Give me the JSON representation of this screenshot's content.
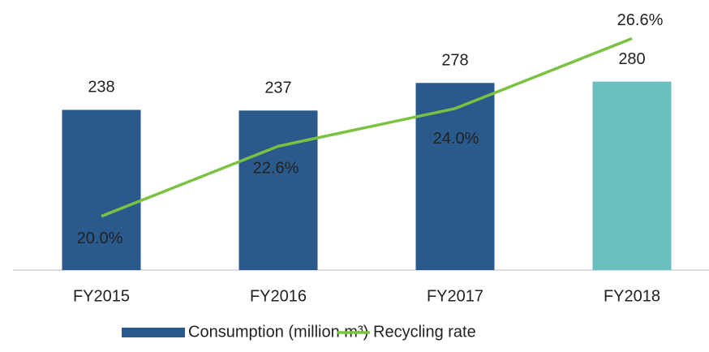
{
  "chart_data": {
    "type": "bar",
    "categories": [
      "FY2015",
      "FY2016",
      "FY2017",
      "FY2018"
    ],
    "series": [
      {
        "name": "Consumption (million m³)",
        "type": "bar",
        "color": "#2a5a8b",
        "colors": [
          "#2a5a8b",
          "#2a5a8b",
          "#2a5a8b",
          "#6bbfbf"
        ],
        "values": [
          238,
          237,
          278,
          280
        ]
      },
      {
        "name": "Recycling rate",
        "type": "line",
        "axis": "y2",
        "color": "#7cc242",
        "values": [
          20.0,
          22.6,
          24.0,
          26.6
        ],
        "value_labels": [
          "20.0%",
          "22.6%",
          "24.0%",
          "26.6%"
        ]
      }
    ],
    "ylim": [
      0,
      400
    ],
    "y2lim": [
      18,
      28
    ],
    "legend": "bottom"
  }
}
